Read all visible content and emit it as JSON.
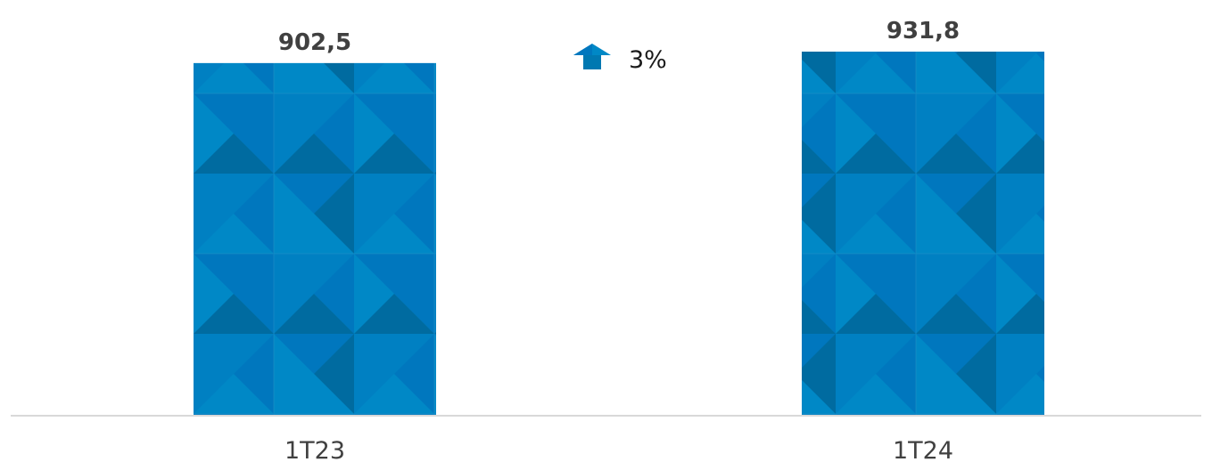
{
  "chart_data": {
    "type": "bar",
    "categories": [
      "1T23",
      "1T24"
    ],
    "values": [
      902.5,
      931.8
    ],
    "value_labels": [
      "902,5",
      "931,8"
    ],
    "title": "",
    "xlabel": "",
    "ylabel": "",
    "ylim": [
      0,
      931.8
    ],
    "grid": false,
    "legend": "none",
    "variation": {
      "direction": "up",
      "label": "3%"
    }
  },
  "colors": {
    "bar_base": "#0088C6",
    "bar_mid": "#0077BE",
    "bar_dark": "#006BA0",
    "axis": "#D9D9D9",
    "arrow": "#0088C6"
  },
  "icons": {
    "variation_arrow": "arrow-up-icon"
  }
}
